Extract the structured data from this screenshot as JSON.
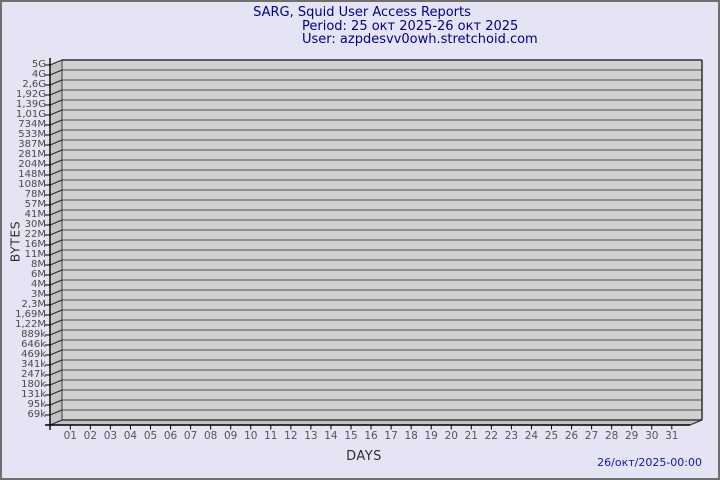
{
  "header": {
    "title": "SARG, Squid User Access Reports",
    "period": "Period: 25 окт 2025-26 окт 2025",
    "user": "User: azpdesvv0owh.stretchoid.com"
  },
  "footer": {
    "timestamp": "26/окт/2025-00:00"
  },
  "chart_data": {
    "type": "bar",
    "title": "SARG, Squid User Access Reports",
    "subtitle_period": "Period: 25 окт 2025-26 окт 2025",
    "subtitle_user": "User: azpdesvv0owh.stretchoid.com",
    "xlabel": "DAYS",
    "ylabel": "BYTES",
    "x_tick_labels": [
      "01",
      "02",
      "03",
      "04",
      "05",
      "06",
      "07",
      "08",
      "09",
      "10",
      "11",
      "12",
      "13",
      "14",
      "15",
      "16",
      "17",
      "18",
      "19",
      "20",
      "21",
      "22",
      "23",
      "24",
      "25",
      "26",
      "27",
      "28",
      "29",
      "30",
      "31"
    ],
    "y_tick_labels": [
      "5G",
      "4G",
      "2,6G",
      "1,92G",
      "1,39G",
      "1,01G",
      "734M",
      "533M",
      "387M",
      "281M",
      "204M",
      "148M",
      "108M",
      "78M",
      "57M",
      "41M",
      "30M",
      "22M",
      "16M",
      "11M",
      "8M",
      "6M",
      "4M",
      "3M",
      "2,3M",
      "1,69M",
      "1,22M",
      "889k",
      "646k",
      "469k",
      "341k",
      "247k",
      "180k",
      "131k",
      "95k",
      "69k"
    ],
    "values": [],
    "grid": "horizontal",
    "legend": "none",
    "scale_y": "pseudo-log",
    "timestamp": "26/окт/2025-00:00",
    "colors": {
      "background": "#e4e4f4",
      "plot_band": "#d1d1d1",
      "gridline": "#6a6a6a",
      "wall": "#c2c2c2",
      "wall_edge": "#222222",
      "plot_border": "#3a3a3a",
      "axis": "#000000",
      "title_text": "#00008b",
      "timestamp_text": "#1515ad",
      "tick_text": "#4a4a4a",
      "frame_border": "#6f6f6f"
    }
  }
}
